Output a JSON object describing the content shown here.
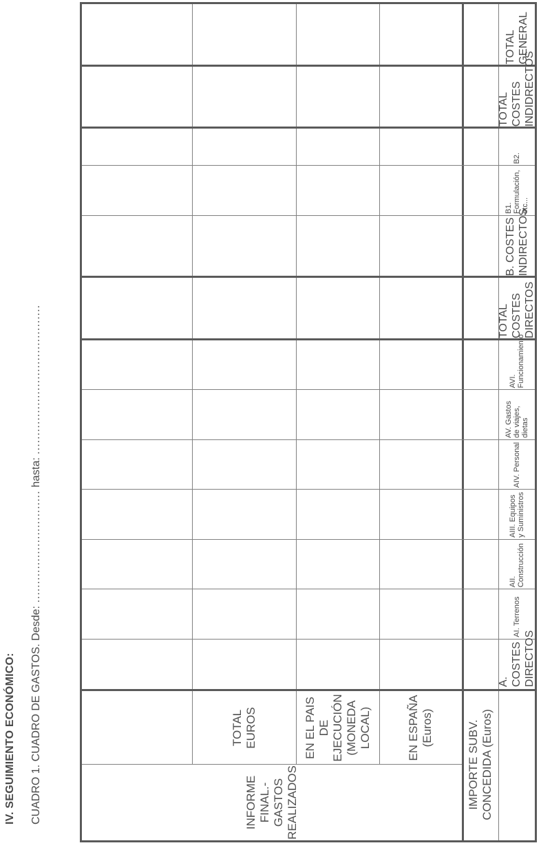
{
  "section_title": "IV. SEGUIMIENTO ECONÓMICO:",
  "subtitle": {
    "prefix": "CUADRO 1. CUADRO DE GASTOS. Desde:",
    "dots_1": "..............................",
    "middle": "hasta:",
    "dots_2": "........................................"
  },
  "table": {
    "headers": {
      "importe": "IMPORTE SUBV. CONCEDIDA (Euros)",
      "informe": "INFORME FINAL.- GASTOS REALIZADOS",
      "espana": "EN ESPAÑA (Euros)",
      "pais": "EN EL PAIS DE EJECUCIÓN (MONEDA LOCAL)",
      "total": "TOTAL EUROS"
    },
    "rows": [
      {
        "label": "A. COSTES DIRECTOS"
      },
      {
        "label": "AI. Terrenos"
      },
      {
        "label": "AII. Construcción"
      },
      {
        "label": "AIII. Equipos y Suministros"
      },
      {
        "label": "AIV. Personal"
      },
      {
        "label": "AV. Gastos de viajes, dietas"
      },
      {
        "label": "AVI. Funcionamiento"
      },
      {
        "label": "TOTAL COSTES DIRECTOS"
      },
      {
        "label": "B. COSTES INDIRECTOS"
      },
      {
        "label": "B1. Formulación, etc..."
      },
      {
        "label": "B2."
      },
      {
        "label": "TOTAL COSTES INDIDRECTOS"
      },
      {
        "label": "TOTAL GENERAL"
      }
    ]
  }
}
